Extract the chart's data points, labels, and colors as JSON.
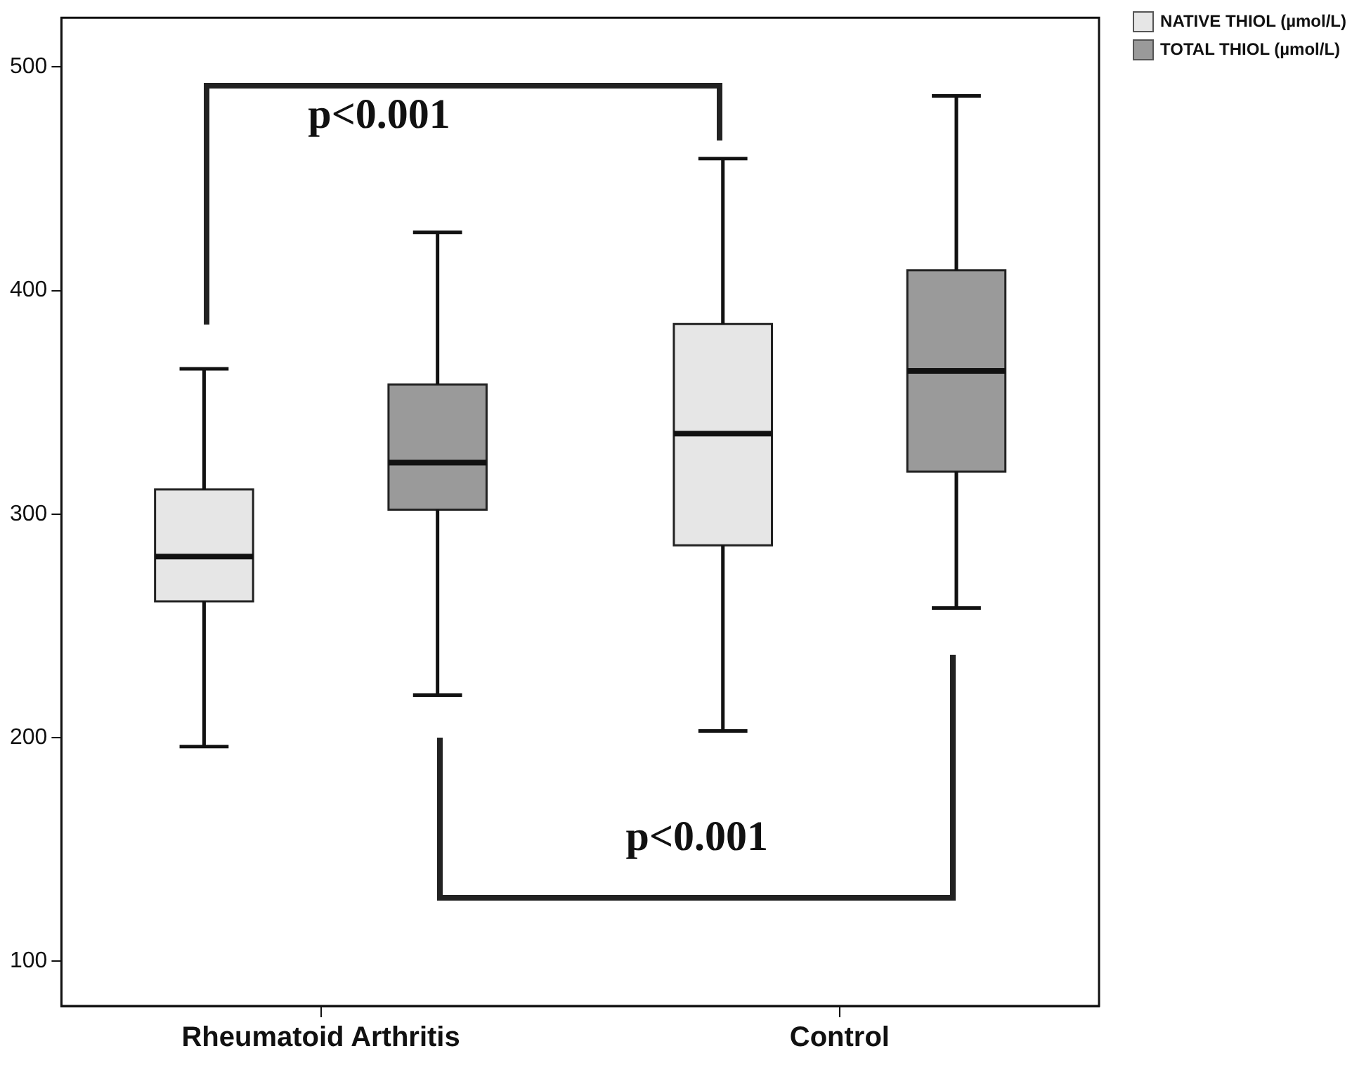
{
  "chart_data": {
    "type": "box",
    "categories": [
      "Rheumatoid Arthritis",
      "Control"
    ],
    "series": [
      {
        "name": "NATIVE THIOL (µmol/L)",
        "color": "#e6e6e6",
        "boxes": [
          {
            "low": 196,
            "q1": 261,
            "median": 281,
            "q3": 311,
            "high": 365
          },
          {
            "low": 203,
            "q1": 286,
            "median": 336,
            "q3": 385,
            "high": 459
          }
        ]
      },
      {
        "name": "TOTAL  THIOL (µmol/L)",
        "color": "#9a9a9a",
        "boxes": [
          {
            "low": 219,
            "q1": 302,
            "median": 323,
            "q3": 358,
            "high": 426
          },
          {
            "low": 258,
            "q1": 319,
            "median": 364,
            "q3": 409,
            "high": 487
          }
        ]
      }
    ],
    "ylim": [
      80,
      522
    ],
    "yticks": [
      100,
      200,
      300,
      400,
      500
    ],
    "annotations": [
      "p<0.001",
      "p<0.001"
    ],
    "grid": false,
    "legend": "top right"
  }
}
